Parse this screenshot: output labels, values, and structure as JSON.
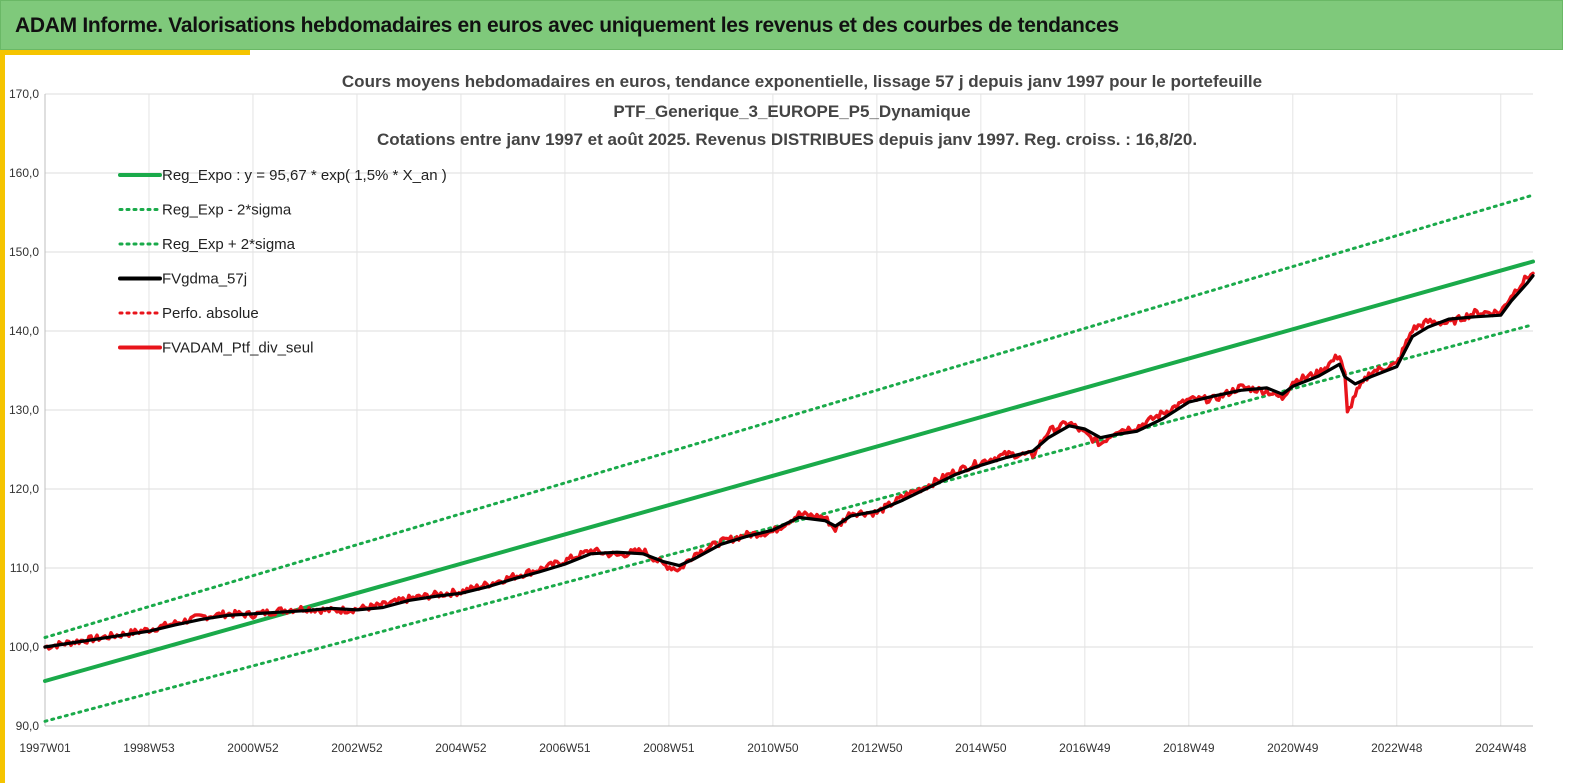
{
  "header": {
    "title": "ADAM Informe. Valorisations hebdomadaires en euros avec uniquement les revenus et des courbes de tendances"
  },
  "colors": {
    "header_bg": "#7fc97b",
    "accent": "#f5c400",
    "trend": "#1aaa4a",
    "gdma": "#000000",
    "perf": "#e8141b"
  },
  "chart_data": {
    "type": "line",
    "title_lines": [
      "Cours moyens hebdomadaires  en euros, tendance exponentielle, lissage 57 j depuis janv 1997 pour le portefeuille",
      "PTF_Generique_3_EUROPE_P5_Dynamique",
      "Cotations entre janv 1997 et août 2025. Revenus DISTRIBUES depuis janv 1997. Reg. croiss. : 16,8/20."
    ],
    "x_range": [
      1997.0,
      2025.62
    ],
    "ylim": [
      90,
      170
    ],
    "y_ticks": [
      "90,0",
      "100,0",
      "110,0",
      "120,0",
      "130,0",
      "140,0",
      "150,0",
      "160,0",
      "170,0"
    ],
    "x_tick_labels": [
      {
        "x": 1997.0,
        "label": "1997W01"
      },
      {
        "x": 1999.0,
        "label": "1998W53"
      },
      {
        "x": 2001.0,
        "label": "2000W52"
      },
      {
        "x": 2003.0,
        "label": "2002W52"
      },
      {
        "x": 2005.0,
        "label": "2004W52"
      },
      {
        "x": 2007.0,
        "label": "2006W51"
      },
      {
        "x": 2009.0,
        "label": "2008W51"
      },
      {
        "x": 2011.0,
        "label": "2010W50"
      },
      {
        "x": 2013.0,
        "label": "2012W50"
      },
      {
        "x": 2015.0,
        "label": "2014W50"
      },
      {
        "x": 2017.0,
        "label": "2016W49"
      },
      {
        "x": 2019.0,
        "label": "2018W49"
      },
      {
        "x": 2021.0,
        "label": "2020W49"
      },
      {
        "x": 2023.0,
        "label": "2022W48"
      },
      {
        "x": 2025.0,
        "label": "2024W48"
      }
    ],
    "grid": true,
    "legend_position": "top-left",
    "series": [
      {
        "name": "Reg_Expo : y = 95,67 * exp( 1,5% *  X_an )",
        "style": "solid",
        "color": "#1aaa4a",
        "points": [
          [
            1997.0,
            95.7
          ],
          [
            2025.62,
            148.8
          ]
        ]
      },
      {
        "name": "Reg_Exp - 2*sigma",
        "style": "dotted",
        "color": "#1aaa4a",
        "points": [
          [
            1997.0,
            90.6
          ],
          [
            2025.62,
            140.8
          ]
        ]
      },
      {
        "name": "Reg_Exp + 2*sigma",
        "style": "dotted",
        "color": "#1aaa4a",
        "points": [
          [
            1997.0,
            101.2
          ],
          [
            2025.62,
            157.2
          ]
        ]
      },
      {
        "name": "FVgdma_57j",
        "style": "solid",
        "color": "#000000",
        "points": [
          [
            1997.0,
            100.0
          ],
          [
            1997.5,
            100.5
          ],
          [
            1998.0,
            101.0
          ],
          [
            1998.5,
            101.5
          ],
          [
            1999.0,
            102.0
          ],
          [
            1999.5,
            102.8
          ],
          [
            2000.0,
            103.5
          ],
          [
            2000.5,
            104.0
          ],
          [
            2001.0,
            104.2
          ],
          [
            2001.5,
            104.4
          ],
          [
            2002.0,
            104.6
          ],
          [
            2002.5,
            104.9
          ],
          [
            2003.0,
            104.7
          ],
          [
            2003.5,
            105.0
          ],
          [
            2004.0,
            105.9
          ],
          [
            2004.5,
            106.4
          ],
          [
            2005.0,
            106.8
          ],
          [
            2005.5,
            107.6
          ],
          [
            2006.0,
            108.6
          ],
          [
            2006.5,
            109.5
          ],
          [
            2007.0,
            110.5
          ],
          [
            2007.5,
            111.8
          ],
          [
            2008.0,
            112.0
          ],
          [
            2008.5,
            111.8
          ],
          [
            2008.9,
            110.8
          ],
          [
            2009.2,
            110.3
          ],
          [
            2009.5,
            111.2
          ],
          [
            2010.0,
            113.0
          ],
          [
            2010.5,
            114.0
          ],
          [
            2011.0,
            114.8
          ],
          [
            2011.5,
            116.4
          ],
          [
            2012.0,
            116.0
          ],
          [
            2012.2,
            115.3
          ],
          [
            2012.5,
            116.6
          ],
          [
            2013.0,
            117.2
          ],
          [
            2013.5,
            118.6
          ],
          [
            2014.0,
            120.2
          ],
          [
            2014.5,
            121.8
          ],
          [
            2015.0,
            123.0
          ],
          [
            2015.5,
            124.0
          ],
          [
            2016.0,
            124.8
          ],
          [
            2016.3,
            126.5
          ],
          [
            2016.7,
            128.0
          ],
          [
            2017.0,
            127.6
          ],
          [
            2017.3,
            126.5
          ],
          [
            2017.6,
            126.9
          ],
          [
            2018.0,
            127.3
          ],
          [
            2018.5,
            128.9
          ],
          [
            2019.0,
            131.0
          ],
          [
            2019.5,
            131.8
          ],
          [
            2020.0,
            132.5
          ],
          [
            2020.5,
            132.8
          ],
          [
            2020.8,
            132.0
          ],
          [
            2021.0,
            133.0
          ],
          [
            2021.5,
            134.3
          ],
          [
            2021.9,
            135.8
          ],
          [
            2022.0,
            134.2
          ],
          [
            2022.2,
            133.3
          ],
          [
            2022.5,
            134.2
          ],
          [
            2023.0,
            135.5
          ],
          [
            2023.3,
            139.3
          ],
          [
            2023.6,
            140.5
          ],
          [
            2024.0,
            141.5
          ],
          [
            2024.5,
            141.8
          ],
          [
            2025.0,
            142.0
          ],
          [
            2025.2,
            143.8
          ],
          [
            2025.5,
            146.0
          ],
          [
            2025.62,
            147.0
          ]
        ]
      },
      {
        "name": "Perfo. absolue",
        "style": "dotted",
        "color": "#e8141b",
        "points": []
      },
      {
        "name": "FVADAM_Ptf_div_seul",
        "style": "solid",
        "color": "#e8141b",
        "points": [
          [
            1997.0,
            100.0
          ],
          [
            1997.5,
            100.6
          ],
          [
            1998.0,
            101.1
          ],
          [
            1998.5,
            101.6
          ],
          [
            1999.0,
            102.2
          ],
          [
            1999.5,
            103.0
          ],
          [
            2000.0,
            103.8
          ],
          [
            2000.5,
            104.2
          ],
          [
            2001.0,
            104.1
          ],
          [
            2001.5,
            104.6
          ],
          [
            2002.0,
            104.9
          ],
          [
            2002.5,
            104.6
          ],
          [
            2003.0,
            104.8
          ],
          [
            2003.5,
            105.3
          ],
          [
            2004.0,
            106.1
          ],
          [
            2004.5,
            106.6
          ],
          [
            2005.0,
            107.0
          ],
          [
            2005.5,
            107.9
          ],
          [
            2006.0,
            108.9
          ],
          [
            2006.5,
            109.8
          ],
          [
            2007.0,
            110.9
          ],
          [
            2007.5,
            112.2
          ],
          [
            2008.0,
            111.6
          ],
          [
            2008.5,
            112.2
          ],
          [
            2008.9,
            110.4
          ],
          [
            2009.2,
            109.8
          ],
          [
            2009.5,
            111.8
          ],
          [
            2010.0,
            113.3
          ],
          [
            2010.5,
            114.2
          ],
          [
            2011.0,
            114.6
          ],
          [
            2011.5,
            116.8
          ],
          [
            2012.0,
            116.4
          ],
          [
            2012.2,
            114.9
          ],
          [
            2012.5,
            117.0
          ],
          [
            2013.0,
            117.0
          ],
          [
            2013.5,
            119.0
          ],
          [
            2014.0,
            120.5
          ],
          [
            2014.5,
            122.2
          ],
          [
            2015.0,
            123.4
          ],
          [
            2015.5,
            124.4
          ],
          [
            2016.0,
            124.3
          ],
          [
            2016.3,
            127.3
          ],
          [
            2016.7,
            128.4
          ],
          [
            2017.0,
            127.0
          ],
          [
            2017.3,
            125.7
          ],
          [
            2017.6,
            127.4
          ],
          [
            2018.0,
            127.8
          ],
          [
            2018.5,
            129.6
          ],
          [
            2019.0,
            131.3
          ],
          [
            2019.5,
            131.4
          ],
          [
            2020.0,
            132.9
          ],
          [
            2020.5,
            132.4
          ],
          [
            2020.8,
            131.5
          ],
          [
            2021.0,
            133.6
          ],
          [
            2021.5,
            134.7
          ],
          [
            2021.9,
            137.0
          ],
          [
            2022.0,
            134.5
          ],
          [
            2022.05,
            129.5
          ],
          [
            2022.2,
            132.0
          ],
          [
            2022.5,
            134.8
          ],
          [
            2023.0,
            135.8
          ],
          [
            2023.3,
            140.2
          ],
          [
            2023.6,
            141.2
          ],
          [
            2024.0,
            141.0
          ],
          [
            2024.5,
            142.3
          ],
          [
            2025.0,
            142.4
          ],
          [
            2025.2,
            144.5
          ],
          [
            2025.5,
            146.8
          ],
          [
            2025.62,
            147.3
          ]
        ]
      }
    ]
  }
}
